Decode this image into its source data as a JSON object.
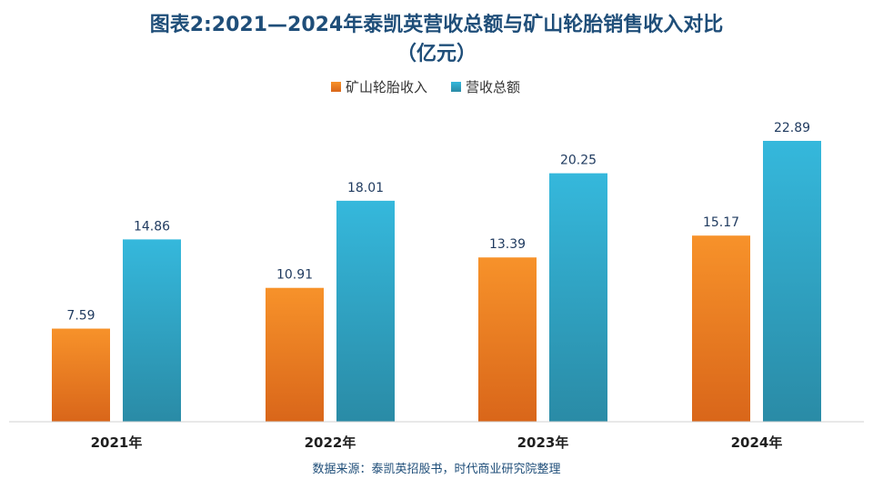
{
  "chart_data": {
    "type": "bar",
    "title": "图表2:2021—2024年泰凯英营收总额与矿山轮胎销售收入对比",
    "subtitle": "（亿元）",
    "categories": [
      "2021年",
      "2022年",
      "2023年",
      "2024年"
    ],
    "series": [
      {
        "name": "矿山轮胎收入",
        "values": [
          7.59,
          10.91,
          13.39,
          15.17
        ],
        "color": "#f58b1f"
      },
      {
        "name": "营收总额",
        "values": [
          14.86,
          18.01,
          20.25,
          22.89
        ],
        "color": "#2fb3d8"
      }
    ],
    "ylim": [
      0,
      26
    ],
    "grid": false,
    "legend_position": "top",
    "source": "数据来源：泰凯英招股书，时代商业研究院整理"
  }
}
